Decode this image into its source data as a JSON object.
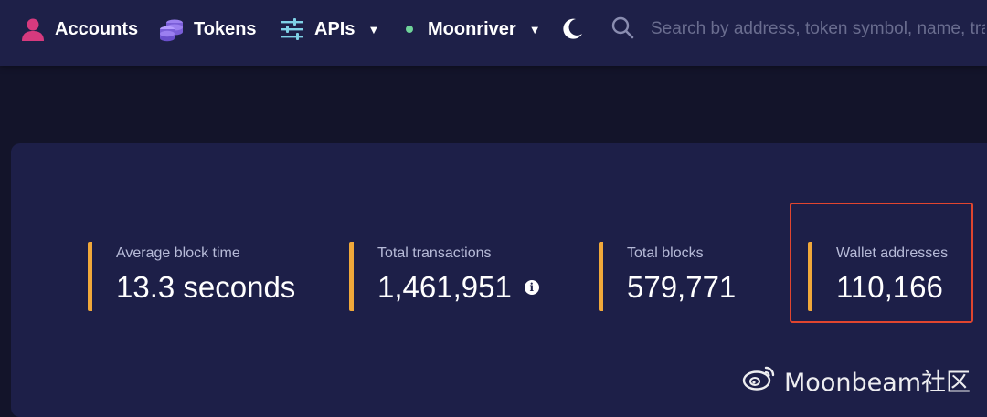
{
  "nav": {
    "accounts_label": "Accounts",
    "tokens_label": "Tokens",
    "apis_label": "APIs",
    "network_label": "Moonriver",
    "network_status_color": "#6fd39a",
    "theme_icon": "moon-icon"
  },
  "search": {
    "placeholder": "Search by address, token symbol, name, transaction hash, or block number"
  },
  "stats": [
    {
      "label": "Average block time",
      "value": "13.3 seconds"
    },
    {
      "label": "Total transactions",
      "value": "1,461,951"
    },
    {
      "label": "Total blocks",
      "value": "579,771"
    },
    {
      "label": "Wallet addresses",
      "value": "110,166"
    }
  ],
  "colors": {
    "accent": "#f0a83a",
    "highlight_border": "#e0452f",
    "background": "#13142a",
    "card": "#1d1f48"
  },
  "watermark": {
    "text": "Moonbeam社区"
  }
}
